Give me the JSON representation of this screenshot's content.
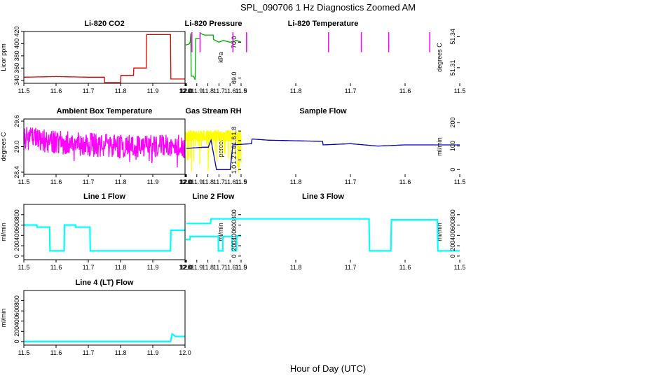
{
  "figure": {
    "title": "SPL_090706  1 Hz Diagnostics Zoomed AM",
    "xlabel": "Hour of Day (UTC)"
  },
  "chart_data": [
    {
      "type": "line",
      "title": "Li-820 CO2",
      "ylabel": "Licor ppm",
      "color": "#e00000",
      "xlim": [
        11.5,
        12.0
      ],
      "ylim": [
        335,
        420
      ],
      "xticks": [
        "11.5",
        "11.6",
        "11.7",
        "11.8",
        "11.9",
        "12.0"
      ],
      "yticks": [
        "340",
        "360",
        "380",
        "400",
        "420"
      ],
      "series": [
        {
          "x": [
            11.5,
            11.6,
            11.7,
            11.75,
            11.751,
            11.8,
            11.801,
            11.84,
            11.841,
            11.88,
            11.881,
            11.955,
            11.956,
            12.0
          ],
          "y": [
            345,
            346,
            345,
            345,
            335,
            335,
            348,
            348,
            360,
            360,
            415,
            415,
            342,
            342
          ]
        }
      ]
    },
    {
      "type": "line",
      "title": "Li-820 Pressure",
      "ylabel": "kPa",
      "color": "#00b000",
      "xlim": [
        11.5,
        12.0
      ],
      "ylim": [
        68.85,
        70.3
      ],
      "xticks": [
        "11.5",
        "11.6",
        "11.7",
        "11.8",
        "11.9",
        "12.0"
      ],
      "yticks": [
        "69.0",
        "70.0"
      ],
      "series": [
        {
          "x": [
            11.5,
            11.54,
            11.6,
            11.66,
            11.7,
            11.75,
            11.751,
            11.83,
            11.87,
            11.871,
            11.91,
            11.915,
            11.93,
            11.95,
            11.955,
            11.96,
            11.97,
            12.0
          ],
          "y": [
            70.0,
            70.05,
            70.0,
            70.05,
            70.0,
            70.08,
            70.2,
            70.2,
            70.25,
            70.1,
            70.1,
            68.95,
            69.05,
            69.05,
            70.25,
            70.0,
            69.95,
            69.92
          ]
        }
      ]
    },
    {
      "type": "area",
      "title": "Li-820 Temperature",
      "ylabel": "degrees C",
      "color": "#ff00ff",
      "xlim": [
        11.5,
        12.0
      ],
      "ylim": [
        51.295,
        51.345
      ],
      "xticks": [
        "11.5",
        "11.6",
        "11.7",
        "11.8",
        "11.9",
        "12.0"
      ],
      "yticks": [
        "51.31",
        "51.34"
      ],
      "series": [
        {
          "x": [
            11.5,
            12.0
          ],
          "y": [
            51.325,
            51.325
          ]
        }
      ],
      "spikes_x": [
        11.555,
        11.63,
        11.68,
        11.74,
        11.89,
        11.915,
        11.975,
        11.99
      ]
    },
    {
      "type": "line",
      "title": "Ambient Box Temperature",
      "ylabel": "degrees C",
      "color": "#ff00ff",
      "xlim": [
        11.5,
        12.0
      ],
      "ylim": [
        28.35,
        29.65
      ],
      "xticks": [
        "11.5",
        "11.6",
        "11.7",
        "11.8",
        "11.9",
        "12.0"
      ],
      "yticks": [
        "28.4",
        "29.0",
        "29.6"
      ],
      "series": [
        {
          "x": [
            11.5,
            11.6,
            11.7,
            11.8,
            11.9,
            12.0
          ],
          "y": [
            29.2,
            29.1,
            29.05,
            29.0,
            29.0,
            29.0
          ]
        }
      ]
    },
    {
      "type": "line",
      "title": "Gas Stream RH",
      "ylabel": "percent",
      "color": "#ffff00",
      "xlim": [
        11.5,
        12.0
      ],
      "ylim": [
        0.9,
        2.05
      ],
      "xticks": [
        "11.5",
        "11.6",
        "11.7",
        "11.8",
        "11.9",
        "12.0"
      ],
      "yticks": [
        "1.0",
        "1.2",
        "1.4",
        "1.6",
        "1.8"
      ],
      "series": [
        {
          "x": [
            11.5,
            11.6,
            11.7,
            11.8,
            11.9,
            12.0
          ],
          "y": [
            1.7,
            1.7,
            1.7,
            1.7,
            1.7,
            1.7
          ]
        }
      ]
    },
    {
      "type": "line",
      "title": "Sample Flow",
      "ylabel": "ml/min",
      "color": "#0000c0",
      "xlim": [
        11.5,
        12.0
      ],
      "ylim": [
        -20,
        215
      ],
      "xticks": [
        "11.5",
        "11.6",
        "11.7",
        "11.8",
        "11.9",
        "12.0"
      ],
      "yticks": [
        "0",
        "100",
        "200"
      ],
      "series": [
        {
          "x": [
            11.5,
            11.55,
            11.6,
            11.65,
            11.7,
            11.75,
            11.751,
            11.85,
            11.88,
            11.881,
            11.915,
            11.92,
            11.945,
            11.955,
            11.96,
            11.97,
            12.0
          ],
          "y": [
            105,
            105,
            105,
            100,
            110,
            105,
            120,
            125,
            130,
            110,
            105,
            0,
            0,
            125,
            95,
            95,
            90
          ]
        }
      ]
    },
    {
      "type": "line",
      "title": "Line 1 Flow",
      "ylabel": "ml/min",
      "color": "#00ffff",
      "xlim": [
        11.5,
        12.0
      ],
      "ylim": [
        -70,
        1000
      ],
      "xticks": [
        "11.5",
        "11.6",
        "11.7",
        "11.8",
        "11.9",
        "12.0"
      ],
      "yticks": [
        "0",
        "200",
        "400",
        "600",
        "800"
      ],
      "series": [
        {
          "x": [
            11.5,
            11.54,
            11.541,
            11.58,
            11.581,
            11.625,
            11.626,
            11.66,
            11.661,
            11.705,
            11.706,
            11.955,
            11.956,
            12.0
          ],
          "y": [
            600,
            600,
            560,
            560,
            100,
            100,
            600,
            600,
            560,
            560,
            100,
            100,
            500,
            500
          ]
        }
      ]
    },
    {
      "type": "line",
      "title": "Line 2 Flow",
      "ylabel": "ml/min",
      "color": "#00ffff",
      "xlim": [
        11.5,
        12.0
      ],
      "ylim": [
        -70,
        1000
      ],
      "xticks": [
        "11.5",
        "11.6",
        "11.7",
        "11.8",
        "11.9",
        "12.0"
      ],
      "yticks": [
        "0",
        "200",
        "400",
        "600",
        "800"
      ],
      "series": [
        {
          "x": [
            11.5,
            11.54,
            11.541,
            11.58,
            11.581,
            11.665,
            11.666,
            11.705,
            11.706,
            11.96,
            11.961,
            12.0
          ],
          "y": [
            390,
            390,
            100,
            100,
            380,
            380,
            100,
            100,
            380,
            380,
            320,
            320
          ]
        }
      ]
    },
    {
      "type": "line",
      "title": "Line 3 Flow",
      "ylabel": "ml/min",
      "color": "#00ffff",
      "xlim": [
        11.5,
        12.0
      ],
      "ylim": [
        -70,
        1000
      ],
      "xticks": [
        "11.5",
        "11.6",
        "11.7",
        "11.8",
        "11.9",
        "12.0"
      ],
      "yticks": [
        "0",
        "200",
        "400",
        "600",
        "800"
      ],
      "series": [
        {
          "x": [
            11.5,
            11.54,
            11.541,
            11.625,
            11.626,
            11.665,
            11.666,
            11.955,
            11.956,
            12.0
          ],
          "y": [
            100,
            100,
            700,
            700,
            100,
            100,
            720,
            720,
            630,
            630
          ]
        }
      ]
    },
    {
      "type": "line",
      "title": "Line 4 (LT) Flow",
      "ylabel": "ml/min",
      "color": "#00ffff",
      "xlim": [
        11.5,
        12.0
      ],
      "ylim": [
        -70,
        1000
      ],
      "xticks": [
        "11.5",
        "11.6",
        "11.7",
        "11.8",
        "11.9",
        "12.0"
      ],
      "yticks": [
        "0",
        "200",
        "400",
        "600",
        "800"
      ],
      "series": [
        {
          "x": [
            11.5,
            11.955,
            11.96,
            11.97,
            12.0
          ],
          "y": [
            0,
            0,
            150,
            100,
            100
          ]
        }
      ]
    }
  ]
}
